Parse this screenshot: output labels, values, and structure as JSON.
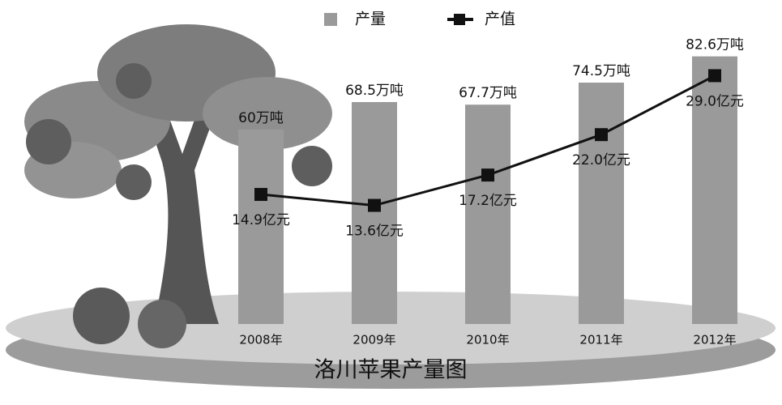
{
  "chart_data": {
    "type": "bar-line",
    "title": "洛川苹果产量图",
    "categories": [
      "2008年",
      "2009年",
      "2010年",
      "2011年",
      "2012年"
    ],
    "series": [
      {
        "name": "产量",
        "type": "bar",
        "color": "#9a9a9a",
        "values": [
          60,
          68.5,
          67.7,
          74.5,
          82.6
        ],
        "value_labels": [
          "60万吨",
          "68.5万吨",
          "67.7万吨",
          "74.5万吨",
          "82.6万吨"
        ]
      },
      {
        "name": "产值",
        "type": "line",
        "axis": "y2",
        "color": "#111111",
        "values": [
          14.9,
          13.6,
          17.2,
          22.0,
          29.0
        ],
        "value_labels": [
          "14.9亿元",
          "13.6亿元",
          "17.2亿元",
          "22.0亿元",
          "29.0亿元"
        ]
      }
    ],
    "legend": "top"
  }
}
